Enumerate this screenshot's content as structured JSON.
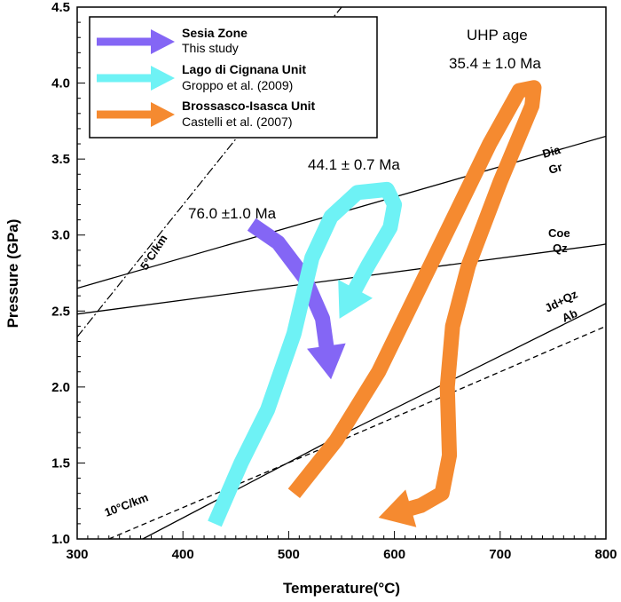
{
  "chart_data": {
    "type": "line",
    "xlabel": "Temperature(°C)",
    "ylabel": "Pressure (GPa)",
    "xlim": [
      300,
      800
    ],
    "ylim": [
      1.0,
      4.5
    ],
    "xticks": [
      "300",
      "400",
      "500",
      "600",
      "700",
      "800"
    ],
    "yticks": [
      "1.0",
      "1.5",
      "2.0",
      "2.5",
      "3.0",
      "3.5",
      "4.0",
      "4.5"
    ],
    "grid": false,
    "legend_position": "top-left",
    "legend": [
      {
        "title": "Sesia Zone",
        "source": "This study",
        "color": "#8466f5"
      },
      {
        "title": "Lago di Cignana Unit",
        "source": "Groppo et al. (2009)",
        "color": "#6ef2f5"
      },
      {
        "title": "Brossasco-Isasca Unit",
        "source": "Castelli et al. (2007)",
        "color": "#f58a30"
      }
    ],
    "paths": [
      {
        "name": "Sesia Zone",
        "color": "#8466f5",
        "points": [
          [
            465,
            3.07
          ],
          [
            490,
            2.95
          ],
          [
            515,
            2.72
          ],
          [
            532,
            2.45
          ],
          [
            540,
            2.05
          ]
        ]
      },
      {
        "name": "Lago di Cignana Unit",
        "color": "#6ef2f5",
        "points": [
          [
            430,
            1.1
          ],
          [
            455,
            1.5
          ],
          [
            480,
            1.85
          ],
          [
            505,
            2.35
          ],
          [
            522,
            2.85
          ],
          [
            540,
            3.12
          ],
          [
            565,
            3.28
          ],
          [
            593,
            3.3
          ],
          [
            600,
            3.2
          ],
          [
            596,
            3.05
          ],
          [
            575,
            2.8
          ],
          [
            548,
            2.45
          ]
        ]
      },
      {
        "name": "Brossasco-Isasca Unit",
        "color": "#f58a30",
        "points": [
          [
            505,
            1.3
          ],
          [
            545,
            1.65
          ],
          [
            585,
            2.1
          ],
          [
            620,
            2.6
          ],
          [
            655,
            3.1
          ],
          [
            690,
            3.6
          ],
          [
            718,
            3.95
          ],
          [
            732,
            3.97
          ],
          [
            730,
            3.85
          ],
          [
            700,
            3.35
          ],
          [
            670,
            2.8
          ],
          [
            655,
            2.4
          ],
          [
            650,
            2.0
          ],
          [
            652,
            1.55
          ],
          [
            645,
            1.3
          ],
          [
            625,
            1.22
          ],
          [
            585,
            1.14
          ]
        ]
      }
    ],
    "reaction_lines": [
      {
        "upper": "Dia",
        "lower": "Gr",
        "style": "solid",
        "points": [
          [
            300,
            2.65
          ],
          [
            800,
            3.65
          ]
        ]
      },
      {
        "upper": "Coe",
        "lower": "Qz",
        "style": "solid",
        "points": [
          [
            300,
            2.48
          ],
          [
            800,
            2.94
          ]
        ]
      },
      {
        "upper": "Jd+Qz",
        "lower": "Ab",
        "style": "solid",
        "points": [
          [
            362,
            1.0
          ],
          [
            540,
            1.65
          ],
          [
            800,
            2.55
          ]
        ]
      },
      {
        "upper": "",
        "lower": "",
        "style": "dashed",
        "points": [
          [
            330,
            1.0
          ],
          [
            540,
            1.62
          ],
          [
            800,
            2.4
          ]
        ]
      }
    ],
    "geotherms": [
      {
        "label": "5°C/km",
        "style": "dashdot",
        "points": [
          [
            300,
            2.33
          ],
          [
            550,
            4.5
          ]
        ]
      },
      {
        "label": "10°C/km",
        "style": "dashed"
      }
    ],
    "annotations": [
      "76.0 ±1.0 Ma",
      "44.1 ± 0.7 Ma",
      "UHP age",
      "35.4 ± 1.0 Ma"
    ]
  }
}
